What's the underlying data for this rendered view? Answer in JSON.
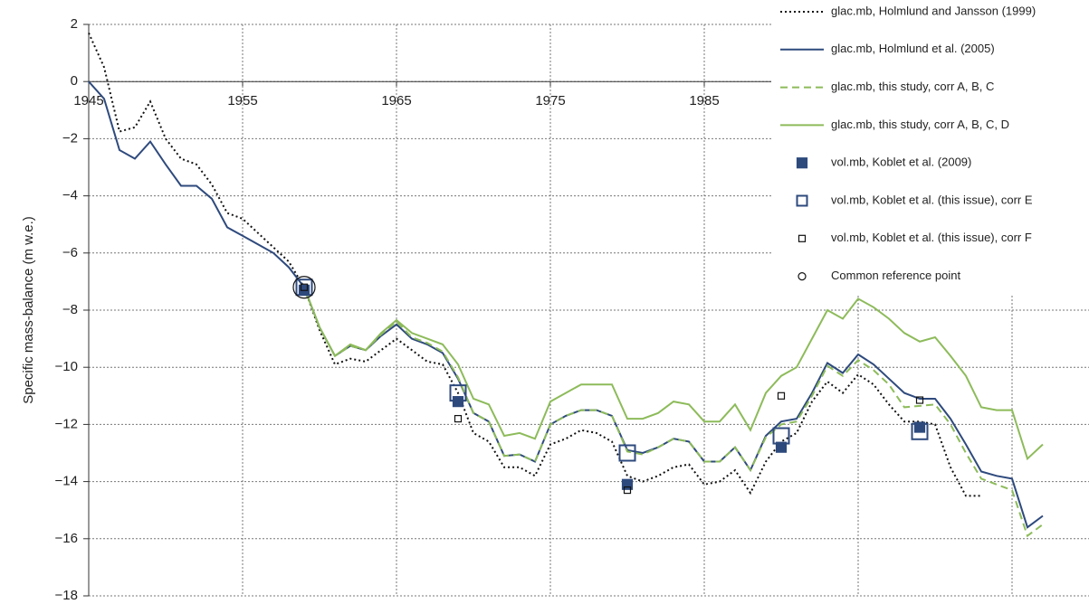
{
  "chart_data": {
    "type": "line",
    "y_label": "Specific mass-balance (m w.e.)",
    "xlim": [
      1945,
      2010
    ],
    "xticks": [
      1945,
      1955,
      1965,
      1975,
      1985,
      1995,
      2005
    ],
    "ylim": [
      -18,
      2
    ],
    "yticks": [
      {
        "value": -18,
        "label": "−18"
      },
      {
        "value": -16,
        "label": "−16"
      },
      {
        "value": -14,
        "label": "−14"
      },
      {
        "value": -12,
        "label": "−12"
      },
      {
        "value": -10,
        "label": "−10"
      },
      {
        "value": -8,
        "label": "−8"
      },
      {
        "value": -6,
        "label": "−6"
      },
      {
        "value": -4,
        "label": "−4"
      },
      {
        "value": -2,
        "label": "−2"
      },
      0,
      2
    ],
    "grid": true,
    "legend": "top-right",
    "x": [
      1945,
      1946,
      1947,
      1948,
      1949,
      1950,
      1951,
      1952,
      1953,
      1954,
      1955,
      1956,
      1957,
      1958,
      1959,
      1960,
      1961,
      1962,
      1963,
      1964,
      1965,
      1966,
      1967,
      1968,
      1969,
      1970,
      1971,
      1972,
      1973,
      1974,
      1975,
      1976,
      1977,
      1978,
      1979,
      1980,
      1981,
      1982,
      1983,
      1984,
      1985,
      1986,
      1987,
      1988,
      1989,
      1990,
      1991,
      1992,
      1993,
      1994,
      1995,
      1996,
      1997,
      1998,
      1999,
      2000,
      2001,
      2002,
      2003,
      2004,
      2005,
      2006,
      2007
    ],
    "series": [
      {
        "name": "glac.mb, Holmlund and Jansson (1999)",
        "type": "line",
        "dash": "dotted",
        "color": "#111111",
        "values": [
          1.7,
          0.5,
          -1.75,
          -1.6,
          -0.7,
          -2.0,
          -2.7,
          -2.9,
          -3.6,
          -4.6,
          -4.8,
          -5.3,
          -5.8,
          -6.3,
          -7.2,
          -8.7,
          -9.9,
          -9.7,
          -9.8,
          -9.4,
          -9.0,
          -9.4,
          -9.8,
          -9.9,
          -10.9,
          -12.3,
          -12.6,
          -13.5,
          -13.5,
          -13.8,
          -12.7,
          -12.5,
          -12.2,
          -12.3,
          -12.6,
          -13.8,
          -14.0,
          -13.8,
          -13.5,
          -13.4,
          -14.1,
          -14.0,
          -13.6,
          -14.4,
          -13.3,
          -12.6,
          -12.3,
          -11.2,
          -10.5,
          -10.9,
          -10.25,
          -10.6,
          -11.3,
          -11.9,
          -11.9,
          -12.0,
          -13.5,
          -14.5,
          -14.5,
          null,
          null,
          null,
          null
        ]
      },
      {
        "name": "glac.mb, Holmlund et al. (2005)",
        "type": "line",
        "dash": "solid",
        "color": "#2e4a7d",
        "values": [
          0,
          -0.6,
          -2.4,
          -2.7,
          -2.1,
          -2.9,
          -3.65,
          -3.65,
          -4.1,
          -5.1,
          -5.4,
          -5.7,
          -6.0,
          -6.5,
          -7.2,
          -8.6,
          -9.6,
          -9.25,
          -9.4,
          -8.9,
          -8.5,
          -9.0,
          -9.2,
          -9.5,
          -10.4,
          -11.6,
          -11.9,
          -13.1,
          -13.05,
          -13.3,
          -12.0,
          -11.7,
          -11.5,
          -11.5,
          -11.7,
          -12.9,
          -13.0,
          -12.8,
          -12.5,
          -12.6,
          -13.3,
          -13.3,
          -12.8,
          -13.6,
          -12.4,
          -11.9,
          -11.8,
          -10.9,
          -9.85,
          -10.2,
          -9.55,
          -9.9,
          -10.4,
          -10.9,
          -11.1,
          -11.1,
          -11.8,
          -12.7,
          -13.65,
          -13.8,
          -13.9,
          -15.6,
          -15.2
        ]
      },
      {
        "name": "glac.mb, this study, corr A, B, C",
        "type": "line",
        "dash": "dashed",
        "color": "#8dbb5a",
        "values": [
          null,
          null,
          null,
          null,
          null,
          null,
          null,
          null,
          null,
          null,
          null,
          null,
          null,
          null,
          -7.2,
          -8.6,
          -9.6,
          -9.25,
          -9.4,
          -8.85,
          -8.4,
          -8.95,
          -9.15,
          -9.45,
          -10.35,
          -11.6,
          -11.9,
          -13.1,
          -13.05,
          -13.3,
          -12.0,
          -11.7,
          -11.5,
          -11.5,
          -11.7,
          -12.95,
          -13.05,
          -12.8,
          -12.5,
          -12.6,
          -13.3,
          -13.3,
          -12.8,
          -13.6,
          -12.45,
          -12.0,
          -11.9,
          -11.0,
          -9.95,
          -10.3,
          -9.75,
          -10.1,
          -10.6,
          -11.4,
          -11.35,
          -11.3,
          -12.0,
          -13.0,
          -13.9,
          -14.1,
          -14.3,
          -15.9,
          -15.5
        ]
      },
      {
        "name": "glac.mb, this study, corr A, B, C, D",
        "type": "line",
        "dash": "solid",
        "color": "#8dbb5a",
        "values": [
          null,
          null,
          null,
          null,
          null,
          null,
          null,
          null,
          null,
          null,
          null,
          null,
          null,
          null,
          -7.2,
          -8.6,
          -9.6,
          -9.2,
          -9.4,
          -8.8,
          -8.35,
          -8.8,
          -9.0,
          -9.2,
          -9.9,
          -11.1,
          -11.3,
          -12.4,
          -12.3,
          -12.5,
          -11.2,
          -10.9,
          -10.6,
          -10.6,
          -10.6,
          -11.8,
          -11.8,
          -11.6,
          -11.2,
          -11.3,
          -11.9,
          -11.9,
          -11.3,
          -12.2,
          -10.9,
          -10.3,
          -10.0,
          -9.0,
          -8.0,
          -8.3,
          -7.6,
          -7.9,
          -8.3,
          -8.8,
          -9.1,
          -8.95,
          -9.6,
          -10.3,
          -11.4,
          -11.5,
          -11.5,
          -13.2,
          -12.7
        ]
      },
      {
        "name": "vol.mb, Koblet et al. (2009)",
        "type": "scatter",
        "marker": "filled-square",
        "color": "#2e4a7d",
        "x": [
          1959,
          1969,
          1980,
          1990,
          1999
        ],
        "values": [
          -7.3,
          -11.2,
          -14.1,
          -12.8,
          -12.1
        ]
      },
      {
        "name": "vol.mb, Koblet et al. (this issue), corr E",
        "type": "scatter",
        "marker": "open-square",
        "color": "#2e4a7d",
        "x": [
          1959,
          1969,
          1980,
          1990,
          1999
        ],
        "values": [
          -7.2,
          -10.9,
          -13.0,
          -12.4,
          -12.25
        ]
      },
      {
        "name": "vol.mb, Koblet et al. (this issue), corr F",
        "type": "scatter",
        "marker": "small-square",
        "color": "#111111",
        "x": [
          1959,
          1969,
          1980,
          1990,
          1999
        ],
        "values": [
          -7.2,
          -11.8,
          -14.3,
          -11.0,
          -11.15
        ]
      },
      {
        "name": "Common reference point",
        "type": "scatter",
        "marker": "circle",
        "color": "#111111",
        "x": [
          1959
        ],
        "values": [
          -7.2
        ]
      }
    ]
  }
}
